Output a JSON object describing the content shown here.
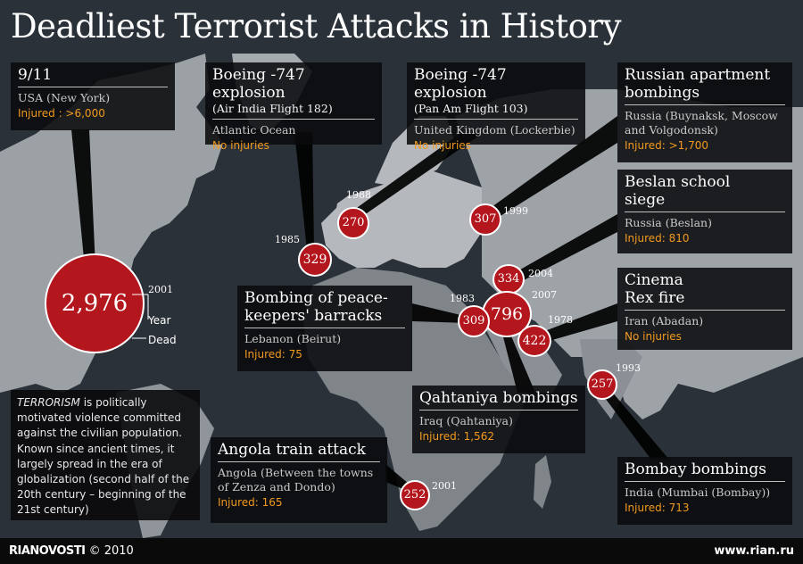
{
  "title": "Deadliest Terrorist Attacks in History",
  "attacks": [
    {
      "id": "911",
      "name": "9/11",
      "location": "USA (New York)",
      "injured": "Injured : >6,000",
      "dead": "2,976",
      "year": "2001"
    },
    {
      "id": "air-india",
      "name": "Boeing -747 explosion",
      "subtitle": "(Air India Flight 182)",
      "location": "Atlantic Ocean",
      "injured": "No injuries",
      "dead": "329",
      "year": "1985"
    },
    {
      "id": "pan-am",
      "name": "Boeing -747 explosion",
      "subtitle": "(Pan Am Flight 103)",
      "location": "United Kingdom (Lockerbie)",
      "injured": "No injuries",
      "dead": "270",
      "year": "1988"
    },
    {
      "id": "russian-apartment",
      "name_line1": "Russian apartment",
      "name_line2": "bombings",
      "location_line1": "Russia (Buynaksk, Moscow",
      "location_line2": "and Volgodonsk)",
      "injured": "Injured: >1,700",
      "dead": "307",
      "year": "1999"
    },
    {
      "id": "beslan",
      "name_line1": "Beslan school",
      "name_line2": "siege",
      "location": "Russia (Beslan)",
      "injured": "Injured: 810",
      "dead": "334",
      "year": "2004"
    },
    {
      "id": "cinema-rex",
      "name_line1": "Cinema",
      "name_line2": "Rex fire",
      "location": "Iran (Abadan)",
      "injured": "No injuries",
      "dead": "422",
      "year": "1978"
    },
    {
      "id": "beirut",
      "name_line1": "Bombing of peace-",
      "name_line2": "keepers' barracks",
      "location": "Lebanon (Beirut)",
      "injured": "Injured:  75",
      "dead": "309",
      "year": "1983"
    },
    {
      "id": "qahtaniya",
      "name": "Qahtaniya bombings",
      "location": "Iraq (Qahtaniya)",
      "injured": "Injured: 1,562",
      "dead": "796",
      "year": "2007"
    },
    {
      "id": "bombay",
      "name": "Bombay bombings",
      "location": "India (Mumbai (Bombay))",
      "injured": "Injured: 713",
      "dead": "257",
      "year": "1993"
    },
    {
      "id": "angola",
      "name": "Angola train attack",
      "location_line1": "Angola (Between the towns",
      "location_line2": "of Zenza and Dondo)",
      "injured": "Injured: 165",
      "dead": "252",
      "year": "2001"
    }
  ],
  "legend": {
    "year_label": "Year",
    "dead_label": "Dead"
  },
  "definition": {
    "term": "TERRORISM",
    "lines": [
      "is politically",
      "motivated violence committed",
      "against the civilian population.",
      "Known since ancient times, it",
      "largely spread in the era of",
      "globalization (second half of the",
      "20th century – beginning of the",
      "21st century)"
    ]
  },
  "footer": {
    "brand": "RIANOVOSTI",
    "copyright": "© 2010",
    "url": "www.rian.ru"
  },
  "colors": {
    "marker": "#b3161c",
    "injured_text": "#f29a1e",
    "land": "#9aa0a6",
    "sea": "#2b3138"
  }
}
